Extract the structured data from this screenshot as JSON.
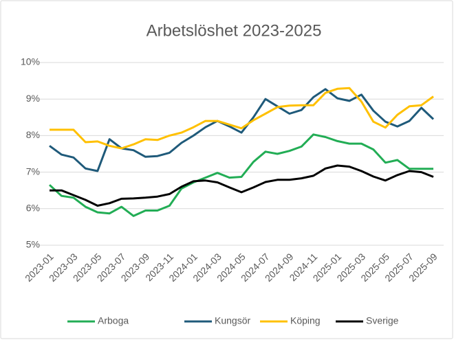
{
  "chart_data": {
    "type": "line",
    "title": "Arbetslöshet 2023-2025",
    "categories": [
      "2023-01",
      null,
      "2023-03",
      null,
      "2023-05",
      null,
      "2023-07",
      null,
      "2023-09",
      null,
      "2023-11",
      null,
      "2024-01",
      null,
      "2024-03",
      null,
      "2024-05",
      null,
      "2024-07",
      null,
      "2024-09",
      null,
      "2024-11",
      null,
      "2025-01",
      null,
      "2025-03",
      null,
      "2025-05",
      null,
      "2025-07",
      null,
      "2025-09"
    ],
    "series": [
      {
        "name": "Arboga",
        "color": "#22ad55",
        "values": [
          6.65,
          6.35,
          6.3,
          6.05,
          5.9,
          5.87,
          6.05,
          5.8,
          5.95,
          5.95,
          6.08,
          6.55,
          6.72,
          6.85,
          6.98,
          6.85,
          6.87,
          7.28,
          7.56,
          7.5,
          7.58,
          7.7,
          8.03,
          7.96,
          7.85,
          7.78,
          7.78,
          7.62,
          7.26,
          7.33,
          7.09,
          7.09,
          7.09
        ]
      },
      {
        "name": "Kungsör",
        "color": "#1f5a7a",
        "values": [
          7.72,
          7.48,
          7.4,
          7.1,
          7.03,
          7.9,
          7.65,
          7.6,
          7.42,
          7.44,
          7.53,
          7.8,
          8.0,
          8.23,
          8.4,
          8.25,
          8.08,
          8.5,
          9.0,
          8.8,
          8.6,
          8.7,
          9.05,
          9.27,
          9.02,
          8.95,
          9.12,
          8.68,
          8.38,
          8.25,
          8.4,
          8.76,
          8.45
        ]
      },
      {
        "name": "Köping",
        "color": "#ffc000",
        "values": [
          8.16,
          8.16,
          8.16,
          7.82,
          7.84,
          7.72,
          7.65,
          7.76,
          7.9,
          7.88,
          8.0,
          8.08,
          8.23,
          8.4,
          8.4,
          8.3,
          8.2,
          8.42,
          8.6,
          8.78,
          8.82,
          8.83,
          8.83,
          9.17,
          9.28,
          9.3,
          8.93,
          8.38,
          8.22,
          8.57,
          8.8,
          8.83,
          9.07
        ]
      },
      {
        "name": "Sverige",
        "color": "#000000",
        "values": [
          6.5,
          6.5,
          6.37,
          6.24,
          6.08,
          6.15,
          6.27,
          6.28,
          6.3,
          6.33,
          6.4,
          6.6,
          6.75,
          6.77,
          6.72,
          6.58,
          6.45,
          6.58,
          6.73,
          6.79,
          6.79,
          6.83,
          6.9,
          7.1,
          7.18,
          7.15,
          7.03,
          6.88,
          6.77,
          6.92,
          7.03,
          7.0,
          6.87
        ]
      }
    ],
    "ylim": [
      5,
      10
    ],
    "yticks": [
      {
        "value": 5,
        "label": "5%"
      },
      {
        "value": 6,
        "label": "6%"
      },
      {
        "value": 7,
        "label": "7%"
      },
      {
        "value": 8,
        "label": "8%"
      },
      {
        "value": 9,
        "label": "9%"
      },
      {
        "value": 10,
        "label": "10%"
      }
    ],
    "grid": true,
    "legend": "bottom"
  }
}
